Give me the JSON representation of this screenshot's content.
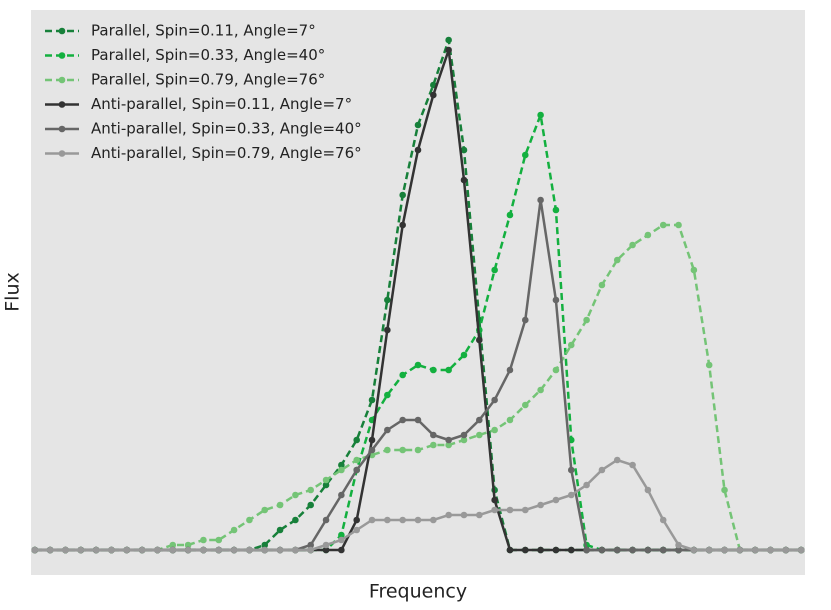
{
  "chart_data": {
    "type": "line",
    "x_label": "Frequency",
    "y_label": "Flux",
    "x": [
      0,
      2,
      4,
      6,
      8,
      10,
      12,
      14,
      16,
      18,
      20,
      22,
      24,
      26,
      28,
      30,
      32,
      34,
      36,
      38,
      40,
      42,
      44,
      46,
      48,
      50,
      52,
      54,
      56,
      58,
      60,
      62,
      64,
      66,
      68,
      70,
      72,
      74,
      76,
      78,
      80,
      82,
      84,
      86,
      88,
      90,
      92,
      94,
      96,
      98,
      100
    ],
    "xlim": [
      -0.5,
      100.5
    ],
    "ylim": [
      -0.05,
      1.08
    ],
    "legend": "upper left",
    "series": [
      {
        "name": "Parallel, Spin=0.11, Angle=7°",
        "color": "#17803a",
        "linestyle": "dashed",
        "values": [
          0,
          0,
          0,
          0,
          0,
          0,
          0,
          0,
          0,
          0,
          0,
          0,
          0,
          0,
          0,
          0.01,
          0.04,
          0.06,
          0.09,
          0.13,
          0.17,
          0.22,
          0.3,
          0.5,
          0.71,
          0.85,
          0.93,
          1.02,
          0.8,
          0.46,
          0.12,
          0,
          0,
          0,
          0,
          0,
          0,
          0,
          0,
          0,
          0,
          0,
          0,
          0,
          0,
          0,
          0,
          0,
          0,
          0,
          0
        ]
      },
      {
        "name": "Parallel, Spin=0.33, Angle=40°",
        "color": "#13b03f",
        "linestyle": "dashed",
        "values": [
          0,
          0,
          0,
          0,
          0,
          0,
          0,
          0,
          0,
          0,
          0,
          0,
          0,
          0,
          0,
          0,
          0,
          0,
          0,
          0,
          0.03,
          0.16,
          0.26,
          0.31,
          0.35,
          0.37,
          0.36,
          0.36,
          0.39,
          0.44,
          0.56,
          0.67,
          0.79,
          0.87,
          0.68,
          0.22,
          0.01,
          0,
          0,
          0,
          0,
          0,
          0,
          0,
          0,
          0,
          0,
          0,
          0,
          0,
          0
        ]
      },
      {
        "name": "Parallel, Spin=0.79, Angle=76°",
        "color": "#74c476",
        "linestyle": "dashed",
        "values": [
          0,
          0,
          0,
          0,
          0,
          0,
          0,
          0,
          0,
          0.01,
          0.01,
          0.02,
          0.02,
          0.04,
          0.06,
          0.08,
          0.09,
          0.11,
          0.12,
          0.14,
          0.16,
          0.18,
          0.19,
          0.2,
          0.2,
          0.2,
          0.21,
          0.21,
          0.22,
          0.23,
          0.24,
          0.26,
          0.29,
          0.32,
          0.36,
          0.41,
          0.46,
          0.53,
          0.58,
          0.61,
          0.63,
          0.65,
          0.65,
          0.56,
          0.37,
          0.12,
          0,
          0,
          0,
          0,
          0
        ]
      },
      {
        "name": "Anti-parallel, Spin=0.11, Angle=7°",
        "color": "#333333",
        "linestyle": "solid",
        "values": [
          0,
          0,
          0,
          0,
          0,
          0,
          0,
          0,
          0,
          0,
          0,
          0,
          0,
          0,
          0,
          0,
          0,
          0,
          0,
          0,
          0,
          0.06,
          0.22,
          0.44,
          0.65,
          0.8,
          0.91,
          1.0,
          0.74,
          0.42,
          0.1,
          0,
          0,
          0,
          0,
          0,
          0,
          0,
          0,
          0,
          0,
          0,
          0,
          0,
          0,
          0,
          0,
          0,
          0,
          0,
          0
        ]
      },
      {
        "name": "Anti-parallel, Spin=0.33, Angle=40°",
        "color": "#666666",
        "linestyle": "solid",
        "values": [
          0,
          0,
          0,
          0,
          0,
          0,
          0,
          0,
          0,
          0,
          0,
          0,
          0,
          0,
          0,
          0,
          0,
          0,
          0.01,
          0.06,
          0.11,
          0.16,
          0.2,
          0.24,
          0.26,
          0.26,
          0.23,
          0.22,
          0.23,
          0.26,
          0.3,
          0.36,
          0.46,
          0.7,
          0.5,
          0.16,
          0,
          0,
          0,
          0,
          0,
          0,
          0,
          0,
          0,
          0,
          0,
          0,
          0,
          0,
          0
        ]
      },
      {
        "name": "Anti-parallel, Spin=0.79, Angle=76°",
        "color": "#999999",
        "linestyle": "solid",
        "values": [
          0,
          0,
          0,
          0,
          0,
          0,
          0,
          0,
          0,
          0,
          0,
          0,
          0,
          0,
          0,
          0,
          0,
          0,
          0,
          0.01,
          0.02,
          0.04,
          0.06,
          0.06,
          0.06,
          0.06,
          0.06,
          0.07,
          0.07,
          0.07,
          0.08,
          0.08,
          0.08,
          0.09,
          0.1,
          0.11,
          0.13,
          0.16,
          0.18,
          0.17,
          0.12,
          0.06,
          0.01,
          0,
          0,
          0,
          0,
          0,
          0,
          0,
          0
        ]
      }
    ]
  }
}
